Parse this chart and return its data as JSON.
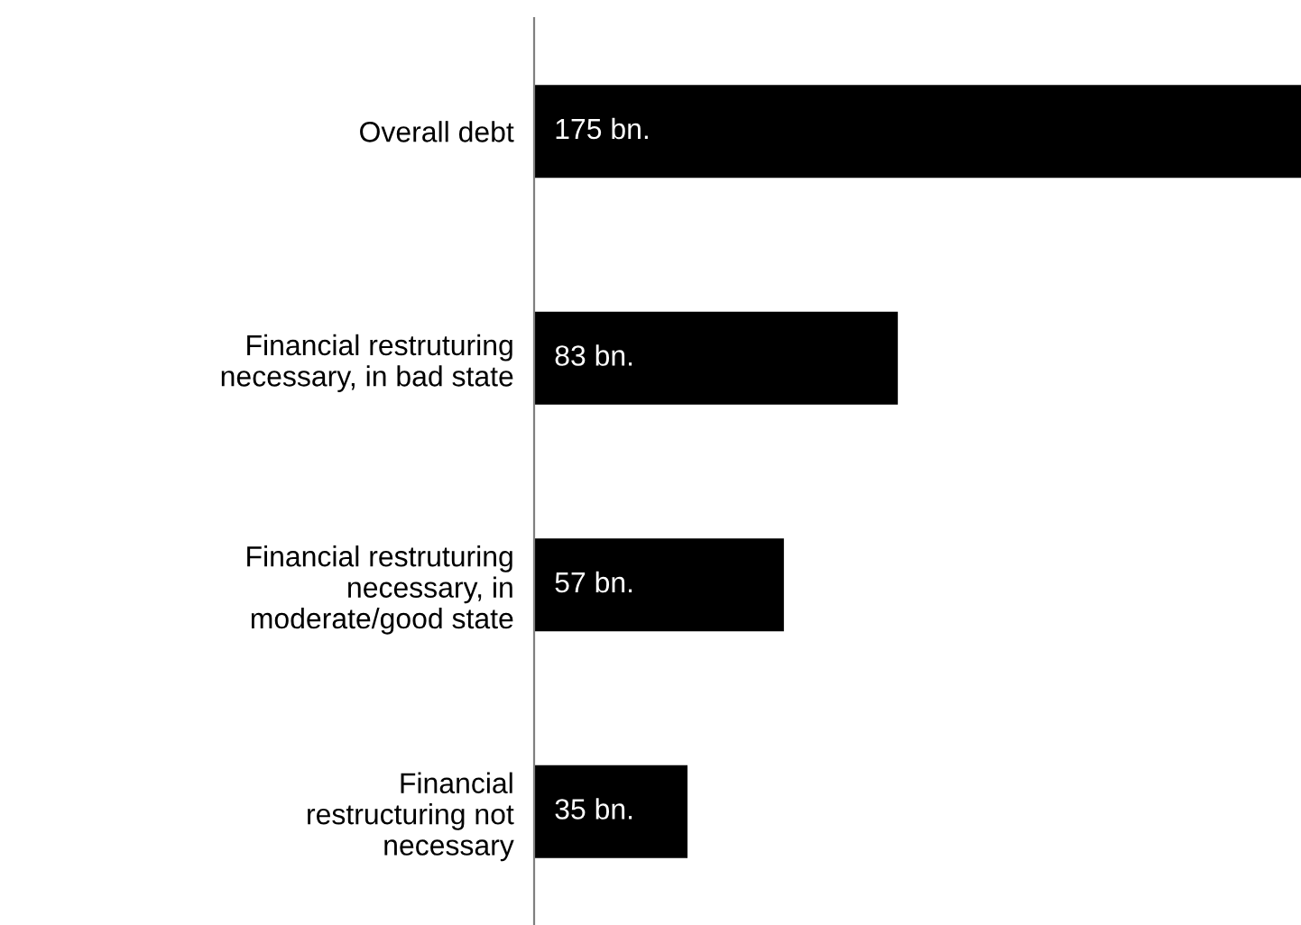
{
  "chart_data": {
    "type": "bar",
    "orientation": "horizontal",
    "categories": [
      "Overall debt",
      "Financial restruturing\nnecessary, in bad state",
      "Financial restruturing\nnecessary, in\nmoderate/good state",
      "Financial\nrestructuring not\nnecessary"
    ],
    "values": [
      175,
      83,
      57,
      35
    ],
    "value_labels": [
      "175 bn.",
      "83 bn.",
      "57 bn.",
      "35 bn."
    ],
    "color": "#000000",
    "grid": false,
    "legend": false
  }
}
